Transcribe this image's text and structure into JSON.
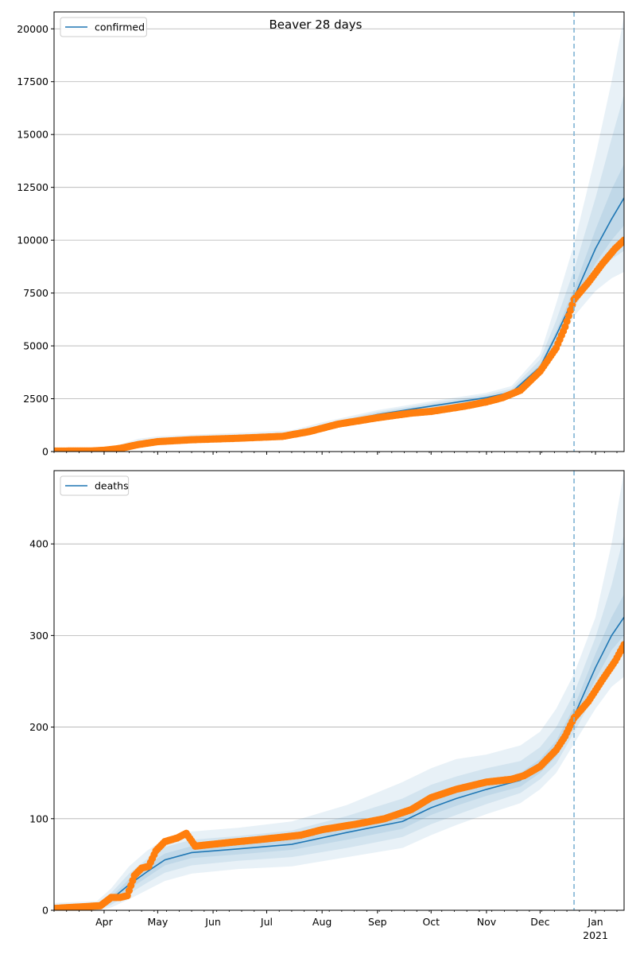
{
  "title": "Beaver 28 days",
  "colors": {
    "model": "#1f77b4",
    "observed": "#ff7f0e",
    "band": "#1f77b4",
    "grid": "#b0b0b0",
    "cutoff": "#7fb3d5"
  },
  "chart_data": [
    {
      "type": "line",
      "name": "confirmed-panel",
      "legend": "confirmed",
      "legend_position": "top-left",
      "grid": "horizontal",
      "x_axis": {
        "range": [
          "2020-03-04",
          "2021-01-17"
        ],
        "month_ticks": [
          "2020-04-01",
          "2020-05-01",
          "2020-06-01",
          "2020-07-01",
          "2020-08-01",
          "2020-09-01",
          "2020-10-01",
          "2020-11-01",
          "2020-12-01",
          "2021-01-01"
        ]
      },
      "ylim": [
        0,
        20800
      ],
      "yticks": [
        0,
        2500,
        5000,
        7500,
        10000,
        12500,
        15000,
        17500,
        20000
      ],
      "ytick_labels": [
        "0",
        "2500",
        "5000",
        "7500",
        "10000",
        "12500",
        "15000",
        "17500",
        "20000"
      ],
      "forecast_start": "2020-12-20",
      "model": {
        "x": [
          "2020-03-04",
          "2020-03-27",
          "2020-04-05",
          "2020-04-20",
          "2020-05-01",
          "2020-05-20",
          "2020-06-20",
          "2020-07-15",
          "2020-08-01",
          "2020-09-01",
          "2020-10-01",
          "2020-11-01",
          "2020-11-15",
          "2020-12-01",
          "2020-12-10",
          "2020-12-20",
          "2021-01-01",
          "2021-01-10",
          "2021-01-17"
        ],
        "y": [
          10,
          20,
          80,
          380,
          520,
          610,
          690,
          800,
          1180,
          1750,
          2150,
          2550,
          2800,
          4000,
          5500,
          7300,
          9600,
          11000,
          12000
        ]
      },
      "bands": [
        {
          "lower": [
            0,
            0,
            20,
            200,
            360,
            440,
            520,
            640,
            1000,
            1550,
            1950,
            2350,
            2570,
            3600,
            4800,
            6400,
            7600,
            8200,
            8500
          ],
          "upper": [
            40,
            80,
            200,
            600,
            720,
            800,
            900,
            1010,
            1380,
            1960,
            2380,
            2780,
            3100,
            4600,
            7000,
            9800,
            14000,
            17500,
            20600
          ]
        },
        {
          "lower": [
            0,
            5,
            40,
            280,
            430,
            510,
            590,
            710,
            1080,
            1630,
            2030,
            2430,
            2660,
            3750,
            5100,
            6800,
            8400,
            9100,
            9500
          ],
          "upper": [
            25,
            50,
            140,
            500,
            630,
            720,
            800,
            910,
            1290,
            1880,
            2290,
            2690,
            2970,
            4350,
            6200,
            8600,
            12000,
            14800,
            16900
          ]
        },
        {
          "lower": [
            3,
            10,
            60,
            330,
            480,
            560,
            640,
            760,
            1130,
            1690,
            2090,
            2490,
            2730,
            3880,
            5300,
            7050,
            8900,
            10000,
            10700
          ],
          "upper": [
            15,
            30,
            100,
            430,
            560,
            660,
            740,
            850,
            1230,
            1810,
            2210,
            2610,
            2870,
            4120,
            5700,
            7700,
            10500,
            12400,
            13600
          ]
        }
      ],
      "observed": {
        "x": [
          "2020-03-04",
          "2020-03-25",
          "2020-04-01",
          "2020-04-10",
          "2020-04-20",
          "2020-05-01",
          "2020-05-20",
          "2020-06-15",
          "2020-07-10",
          "2020-07-25",
          "2020-08-10",
          "2020-09-01",
          "2020-09-20",
          "2020-10-01",
          "2020-10-20",
          "2020-11-01",
          "2020-11-10",
          "2020-11-20",
          "2020-12-01",
          "2020-12-10",
          "2020-12-15",
          "2020-12-20",
          "2020-12-28",
          "2021-01-05",
          "2021-01-12",
          "2021-01-17"
        ],
        "y": [
          25,
          30,
          60,
          150,
          330,
          470,
          560,
          630,
          720,
          950,
          1300,
          1600,
          1820,
          1900,
          2150,
          2350,
          2550,
          2900,
          3800,
          4900,
          5900,
          7200,
          8000,
          8900,
          9600,
          10000
        ]
      }
    },
    {
      "type": "line",
      "name": "deaths-panel",
      "legend": "deaths",
      "legend_position": "top-left",
      "grid": "horizontal",
      "x_axis": {
        "range": [
          "2020-03-04",
          "2021-01-17"
        ],
        "month_ticks": [
          "2020-04-01",
          "2020-05-01",
          "2020-06-01",
          "2020-07-01",
          "2020-08-01",
          "2020-09-01",
          "2020-10-01",
          "2020-11-01",
          "2020-12-01",
          "2021-01-01"
        ],
        "month_labels": [
          "Apr",
          "May",
          "Jun",
          "Jul",
          "Aug",
          "Sep",
          "Oct",
          "Nov",
          "Dec",
          "Jan"
        ],
        "year_label": "2021"
      },
      "ylim": [
        0,
        480
      ],
      "yticks": [
        0,
        100,
        200,
        300,
        400
      ],
      "ytick_labels": [
        "0",
        "100",
        "200",
        "300",
        "400"
      ],
      "forecast_start": "2020-12-20",
      "model": {
        "x": [
          "2020-03-04",
          "2020-03-28",
          "2020-04-05",
          "2020-04-15",
          "2020-04-25",
          "2020-05-05",
          "2020-05-20",
          "2020-06-15",
          "2020-07-15",
          "2020-08-15",
          "2020-09-15",
          "2020-10-01",
          "2020-10-15",
          "2020-11-01",
          "2020-11-20",
          "2020-12-01",
          "2020-12-10",
          "2020-12-20",
          "2021-01-01",
          "2021-01-10",
          "2021-01-17"
        ],
        "y": [
          1,
          3,
          12,
          28,
          42,
          55,
          63,
          67,
          72,
          85,
          97,
          112,
          122,
          132,
          142,
          157,
          175,
          212,
          265,
          300,
          320
        ]
      },
      "bands": [
        {
          "lower": [
            0,
            0,
            3,
            12,
            22,
            32,
            40,
            45,
            48,
            58,
            68,
            82,
            93,
            105,
            117,
            132,
            150,
            182,
            220,
            244,
            255
          ],
          "upper": [
            8,
            10,
            24,
            48,
            65,
            78,
            86,
            90,
            97,
            115,
            140,
            155,
            165,
            170,
            180,
            195,
            220,
            258,
            320,
            400,
            480
          ]
        },
        {
          "lower": [
            0,
            1,
            6,
            18,
            30,
            41,
            49,
            54,
            58,
            68,
            80,
            94,
            104,
            116,
            128,
            143,
            160,
            194,
            238,
            266,
            282
          ],
          "upper": [
            5,
            7,
            19,
            40,
            56,
            69,
            77,
            81,
            87,
            103,
            122,
            137,
            146,
            155,
            163,
            178,
            200,
            237,
            298,
            355,
            410
          ]
        },
        {
          "lower": [
            0,
            2,
            9,
            23,
            36,
            49,
            57,
            61,
            66,
            77,
            89,
            104,
            114,
            125,
            135,
            150,
            168,
            204,
            252,
            284,
            300
          ],
          "upper": [
            3,
            5,
            15,
            34,
            49,
            62,
            70,
            74,
            79,
            93,
            106,
            121,
            130,
            140,
            150,
            165,
            185,
            222,
            280,
            320,
            345
          ]
        }
      ],
      "observed": {
        "x": [
          "2020-03-04",
          "2020-03-30",
          "2020-04-05",
          "2020-04-10",
          "2020-04-14",
          "2020-04-18",
          "2020-04-22",
          "2020-04-26",
          "2020-04-30",
          "2020-05-05",
          "2020-05-12",
          "2020-05-17",
          "2020-05-22",
          "2020-06-10",
          "2020-07-01",
          "2020-07-20",
          "2020-08-01",
          "2020-08-20",
          "2020-09-05",
          "2020-09-20",
          "2020-10-01",
          "2020-10-15",
          "2020-11-01",
          "2020-11-15",
          "2020-11-22",
          "2020-12-01",
          "2020-12-10",
          "2020-12-15",
          "2020-12-20",
          "2020-12-28",
          "2021-01-05",
          "2021-01-12",
          "2021-01-17"
        ],
        "y": [
          2,
          5,
          14,
          14,
          16,
          38,
          46,
          48,
          65,
          75,
          79,
          84,
          70,
          74,
          78,
          82,
          88,
          94,
          100,
          110,
          123,
          132,
          140,
          143,
          147,
          157,
          175,
          190,
          210,
          228,
          252,
          272,
          290
        ]
      }
    }
  ]
}
